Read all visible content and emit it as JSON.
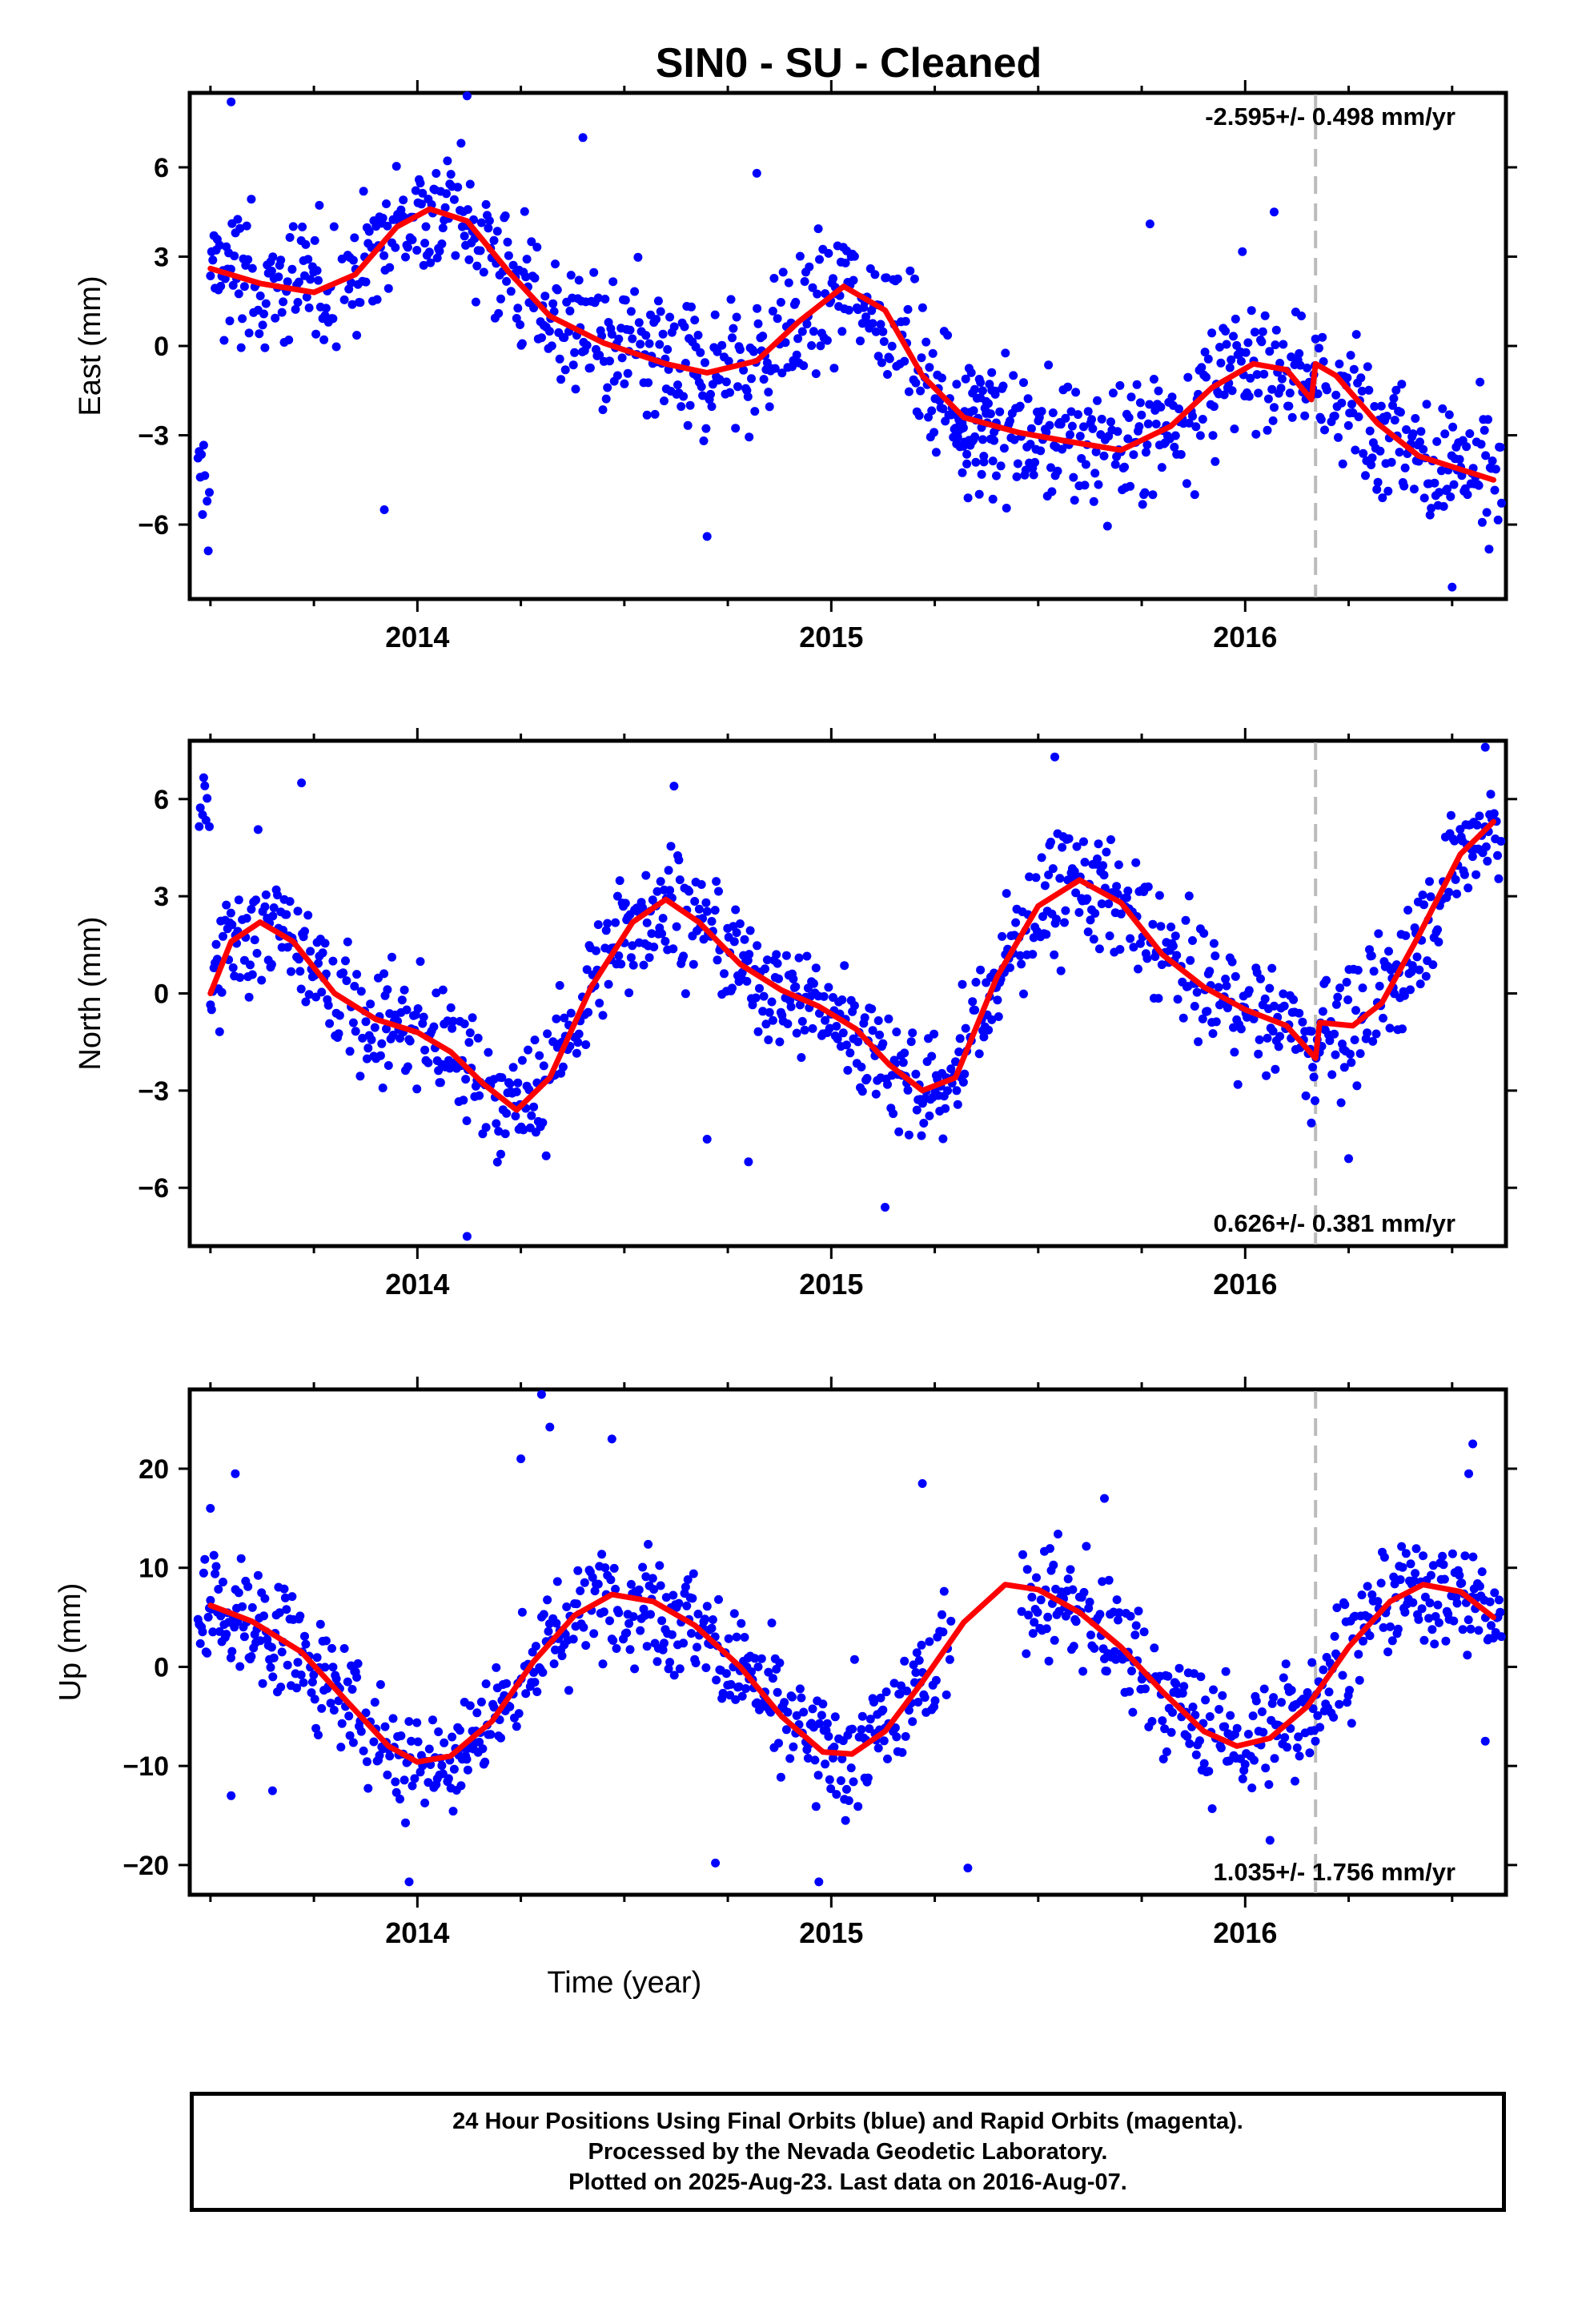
{
  "chart_data": {
    "type": "scatter",
    "title": "SIN0  - SU - Cleaned",
    "xlabel": "Time (year)",
    "xlim": [
      2013.45,
      2016.63
    ],
    "x_ticks": [
      2014,
      2015,
      2016
    ],
    "x_tick_labels": [
      "2014",
      "2015",
      "2016"
    ],
    "marker_line_x": 2016.17,
    "point_color": "#0000ff",
    "fit_color": "#ff0000",
    "marker_line_color": "#bbbbbb",
    "panels": [
      {
        "name": "east",
        "ylabel": "East (mm)",
        "ylim": [
          -8.5,
          8.5
        ],
        "y_ticks": [
          -6,
          -3,
          0,
          3,
          6
        ],
        "y_tick_labels": [
          "−6",
          "−3",
          "0",
          "3",
          "6"
        ],
        "rate_text": "-2.595+/- 0.498 mm/yr",
        "rate_position": "top-right",
        "noise": 1.6,
        "fit": [
          [
            2013.5,
            2.6
          ],
          [
            2013.62,
            2.1
          ],
          [
            2013.75,
            1.8
          ],
          [
            2013.85,
            2.4
          ],
          [
            2013.95,
            4.0
          ],
          [
            2014.03,
            4.6
          ],
          [
            2014.12,
            4.2
          ],
          [
            2014.22,
            2.5
          ],
          [
            2014.32,
            1.0
          ],
          [
            2014.45,
            0.1
          ],
          [
            2014.6,
            -0.6
          ],
          [
            2014.7,
            -0.9
          ],
          [
            2014.82,
            -0.5
          ],
          [
            2014.92,
            0.8
          ],
          [
            2015.03,
            2.0
          ],
          [
            2015.13,
            1.2
          ],
          [
            2015.22,
            -1.0
          ],
          [
            2015.32,
            -2.4
          ],
          [
            2015.45,
            -2.9
          ],
          [
            2015.57,
            -3.2
          ],
          [
            2015.7,
            -3.5
          ],
          [
            2015.82,
            -2.7
          ],
          [
            2015.92,
            -1.4
          ],
          [
            2016.02,
            -0.6
          ],
          [
            2016.1,
            -0.8
          ],
          [
            2016.16,
            -1.8
          ],
          [
            2016.17,
            -0.6
          ],
          [
            2016.22,
            -1.0
          ],
          [
            2016.32,
            -2.6
          ],
          [
            2016.42,
            -3.7
          ],
          [
            2016.6,
            -4.5
          ]
        ],
        "segments": [
          [
            2013.47,
            2016.17
          ],
          [
            2015.3,
            2015.4
          ],
          [
            2016.17,
            2016.62
          ]
        ],
        "outliers": [
          [
            2013.55,
            8.2
          ],
          [
            2014.12,
            8.4
          ],
          [
            2014.4,
            7.0
          ],
          [
            2013.92,
            -5.5
          ],
          [
            2014.7,
            -6.4
          ],
          [
            2015.77,
            4.1
          ],
          [
            2016.07,
            4.5
          ],
          [
            2016.5,
            -8.1
          ],
          [
            2014.82,
            5.8
          ]
        ]
      },
      {
        "name": "north",
        "ylabel": "North (mm)",
        "ylim": [
          -7.8,
          7.8
        ],
        "y_ticks": [
          -6,
          -3,
          0,
          3,
          6
        ],
        "y_tick_labels": [
          "−6",
          "−3",
          "0",
          "3",
          "6"
        ],
        "rate_text": "0.626+/- 0.381 mm/yr",
        "rate_position": "bottom-right",
        "noise": 1.3,
        "fit": [
          [
            2013.5,
            0.0
          ],
          [
            2013.55,
            1.6
          ],
          [
            2013.62,
            2.2
          ],
          [
            2013.7,
            1.6
          ],
          [
            2013.8,
            0.0
          ],
          [
            2013.9,
            -0.8
          ],
          [
            2014.0,
            -1.2
          ],
          [
            2014.08,
            -1.8
          ],
          [
            2014.16,
            -2.8
          ],
          [
            2014.24,
            -3.6
          ],
          [
            2014.32,
            -2.6
          ],
          [
            2014.42,
            0.2
          ],
          [
            2014.52,
            2.2
          ],
          [
            2014.6,
            2.9
          ],
          [
            2014.68,
            2.2
          ],
          [
            2014.78,
            0.9
          ],
          [
            2014.88,
            0.1
          ],
          [
            2014.97,
            -0.4
          ],
          [
            2015.06,
            -1.1
          ],
          [
            2015.14,
            -2.2
          ],
          [
            2015.22,
            -3.0
          ],
          [
            2015.3,
            -2.6
          ],
          [
            2015.4,
            0.5
          ],
          [
            2015.5,
            2.7
          ],
          [
            2015.6,
            3.5
          ],
          [
            2015.7,
            2.8
          ],
          [
            2015.8,
            1.2
          ],
          [
            2015.9,
            0.2
          ],
          [
            2016.0,
            -0.5
          ],
          [
            2016.1,
            -1.0
          ],
          [
            2016.17,
            -2.0
          ],
          [
            2016.18,
            -0.9
          ],
          [
            2016.26,
            -1.0
          ],
          [
            2016.33,
            -0.3
          ],
          [
            2016.42,
            1.8
          ],
          [
            2016.52,
            4.3
          ],
          [
            2016.6,
            5.3
          ]
        ],
        "segments": [
          [
            2013.47,
            2016.62
          ]
        ],
        "outliers": [
          [
            2013.72,
            6.5
          ],
          [
            2014.12,
            -7.5
          ],
          [
            2014.7,
            -4.5
          ],
          [
            2014.8,
            -5.2
          ],
          [
            2015.13,
            -6.6
          ],
          [
            2015.54,
            7.3
          ],
          [
            2016.16,
            -4.0
          ],
          [
            2016.25,
            -5.1
          ],
          [
            2016.58,
            7.6
          ],
          [
            2014.62,
            6.4
          ]
        ]
      },
      {
        "name": "up",
        "ylabel": "Up (mm)",
        "ylim": [
          -23,
          28
        ],
        "y_ticks": [
          -20,
          -10,
          0,
          10,
          20
        ],
        "y_tick_labels": [
          "−20",
          "−10",
          "0",
          "10",
          "20"
        ],
        "rate_text": "1.035+/- 1.756 mm/yr",
        "rate_position": "bottom-right",
        "noise": 4.2,
        "fit": [
          [
            2013.5,
            6.2
          ],
          [
            2013.6,
            4.6
          ],
          [
            2013.72,
            1.5
          ],
          [
            2013.83,
            -3.5
          ],
          [
            2013.93,
            -8.0
          ],
          [
            2014.0,
            -9.6
          ],
          [
            2014.08,
            -9.0
          ],
          [
            2014.18,
            -5.5
          ],
          [
            2014.28,
            0.5
          ],
          [
            2014.38,
            5.2
          ],
          [
            2014.47,
            7.3
          ],
          [
            2014.57,
            6.6
          ],
          [
            2014.67,
            4.2
          ],
          [
            2014.78,
            0.0
          ],
          [
            2014.88,
            -5.0
          ],
          [
            2014.98,
            -8.6
          ],
          [
            2015.05,
            -8.8
          ],
          [
            2015.13,
            -6.5
          ],
          [
            2015.22,
            -1.5
          ],
          [
            2015.32,
            4.5
          ],
          [
            2015.42,
            8.3
          ],
          [
            2015.5,
            7.8
          ],
          [
            2015.6,
            5.5
          ],
          [
            2015.7,
            2.0
          ],
          [
            2015.8,
            -2.5
          ],
          [
            2015.9,
            -6.5
          ],
          [
            2015.98,
            -8.0
          ],
          [
            2016.06,
            -7.2
          ],
          [
            2016.15,
            -4.0
          ],
          [
            2016.25,
            2.0
          ],
          [
            2016.35,
            6.6
          ],
          [
            2016.43,
            8.3
          ],
          [
            2016.52,
            7.6
          ],
          [
            2016.6,
            5.0
          ]
        ],
        "segments": [
          [
            2013.47,
            2015.29
          ],
          [
            2015.46,
            2016.62
          ]
        ],
        "outliers": [
          [
            2014.3,
            27.5
          ],
          [
            2014.32,
            24.2
          ],
          [
            2014.47,
            23.0
          ],
          [
            2014.25,
            21.0
          ],
          [
            2013.56,
            19.5
          ],
          [
            2013.5,
            16.0
          ],
          [
            2015.22,
            18.5
          ],
          [
            2015.66,
            17.0
          ],
          [
            2016.55,
            22.5
          ],
          [
            2016.54,
            19.5
          ],
          [
            2013.98,
            -21.7
          ],
          [
            2014.72,
            -19.8
          ],
          [
            2014.97,
            -21.7
          ],
          [
            2015.33,
            -20.3
          ],
          [
            2016.06,
            -17.5
          ],
          [
            2013.55,
            -13.0
          ],
          [
            2013.65,
            -12.5
          ],
          [
            2016.58,
            -7.5
          ]
        ]
      }
    ],
    "footer_lines": [
      "24 Hour Positions Using Final Orbits (blue) and Rapid Orbits (magenta).",
      "Processed by the Nevada Geodetic Laboratory.",
      "Plotted on 2025-Aug-23. Last data on 2016-Aug-07."
    ]
  }
}
